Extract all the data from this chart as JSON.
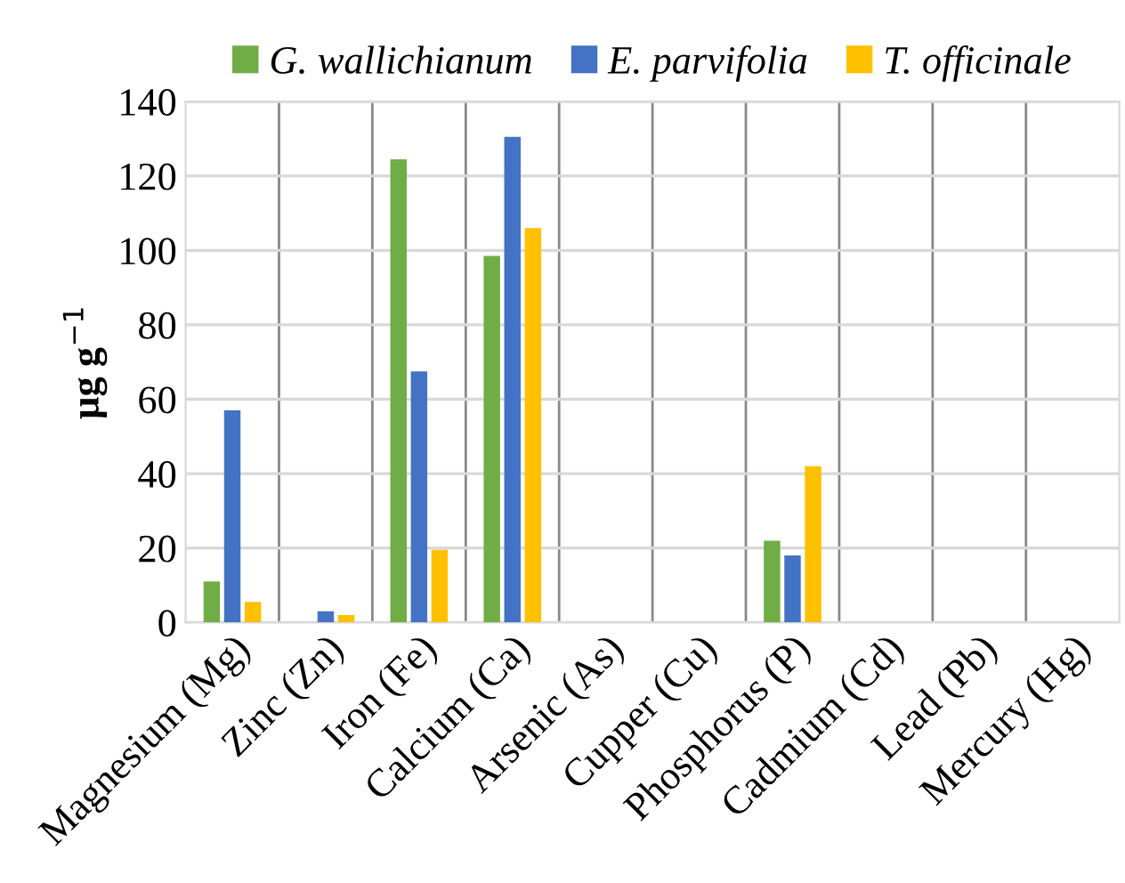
{
  "chart_data": {
    "type": "bar",
    "ylabel": "µg g$^{−1}$",
    "categories": [
      "Magnesium (Mg)",
      "Zinc (Zn)",
      "Iron (Fe)",
      "Calcium (Ca)",
      "Arsenic (As)",
      "Cupper (Cu)",
      "Phosphorus (P)",
      "Cadmium (Cd)",
      "Lead (Pb)",
      "Mercury (Hg)"
    ],
    "series": [
      {
        "name": "G. wallichianum",
        "color": "#70ad47",
        "values": [
          11,
          null,
          124.5,
          98.5,
          null,
          null,
          22,
          null,
          null,
          null
        ]
      },
      {
        "name": "E. parvifolia",
        "color": "#4472c4",
        "values": [
          57,
          3,
          67.5,
          130.5,
          null,
          null,
          18,
          null,
          null,
          null
        ]
      },
      {
        "name": "T. officinale",
        "color": "#ffc000",
        "values": [
          5.5,
          2,
          19.5,
          106,
          null,
          null,
          42,
          null,
          null,
          null
        ]
      }
    ],
    "ylim": [
      0,
      140
    ],
    "yticks": [
      0,
      20,
      40,
      60,
      80,
      100,
      120,
      140
    ],
    "grid": true,
    "legend": "top"
  }
}
